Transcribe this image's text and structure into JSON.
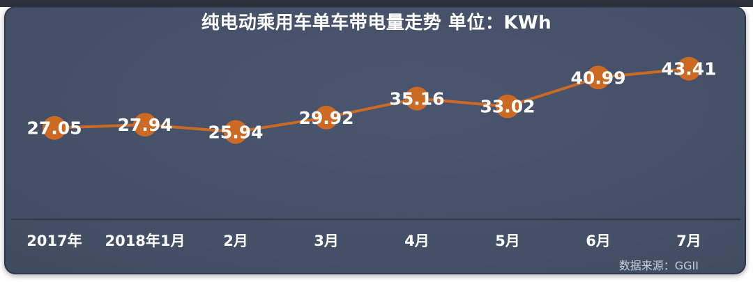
{
  "header": {
    "title": "纯电动乘用车单车带电量走势 单位：KWh"
  },
  "footer": {
    "source": "数据来源：GGII"
  },
  "colors": {
    "accent_orange": "#cc6a24",
    "card_background": "#445066",
    "top_strip": "#2d323c",
    "axis_line": "#353c49",
    "label_text": "#ffffff",
    "source_text": "#c9cdd6"
  },
  "chart_data": {
    "type": "line",
    "title": "纯电动乘用车单车带电量走势",
    "unit": "单位：KWh",
    "categories": [
      "2017年",
      "2018年1月",
      "2月",
      "3月",
      "4月",
      "5月",
      "6月",
      "7月"
    ],
    "values": [
      27.05,
      27.94,
      25.94,
      29.92,
      35.16,
      33.02,
      40.99,
      43.41
    ],
    "data_labels": [
      27.05,
      27.94,
      25.94,
      29.92,
      35.16,
      33.02,
      40.99,
      43.41
    ],
    "ylim": [
      22,
      47
    ],
    "xlabel": "",
    "ylabel": "",
    "grid": false,
    "legend": "none",
    "marker": "circle",
    "line_color": "#cc6a24",
    "marker_color": "#cc6a24",
    "label_color": "#ffffff",
    "source": "数据来源：GGII"
  }
}
